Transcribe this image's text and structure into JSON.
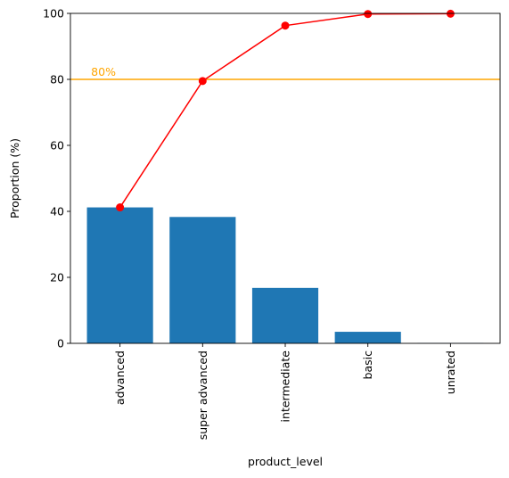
{
  "chart_data": {
    "type": "bar",
    "title": "",
    "xlabel": "product_level",
    "ylabel": "Proportion (%)",
    "categories": [
      "advanced",
      "super advanced",
      "intermediate",
      "basic",
      "unrated"
    ],
    "series": [
      {
        "type": "bar",
        "values": [
          41.2,
          38.3,
          16.8,
          3.5,
          0.1
        ],
        "color": "#1f77b4"
      },
      {
        "type": "line",
        "values": [
          41.2,
          79.5,
          96.3,
          99.8,
          99.9
        ],
        "color": "#ff0000"
      }
    ],
    "reference_line": {
      "value": 80,
      "label": "80%",
      "color": "#ffa500"
    },
    "ylim": [
      0,
      100
    ],
    "yticks": [
      0,
      20,
      40,
      60,
      80,
      100
    ],
    "ytick_labels": [
      "0",
      "20",
      "40",
      "60",
      "80",
      "100"
    ],
    "grid": false,
    "legend": "none"
  }
}
